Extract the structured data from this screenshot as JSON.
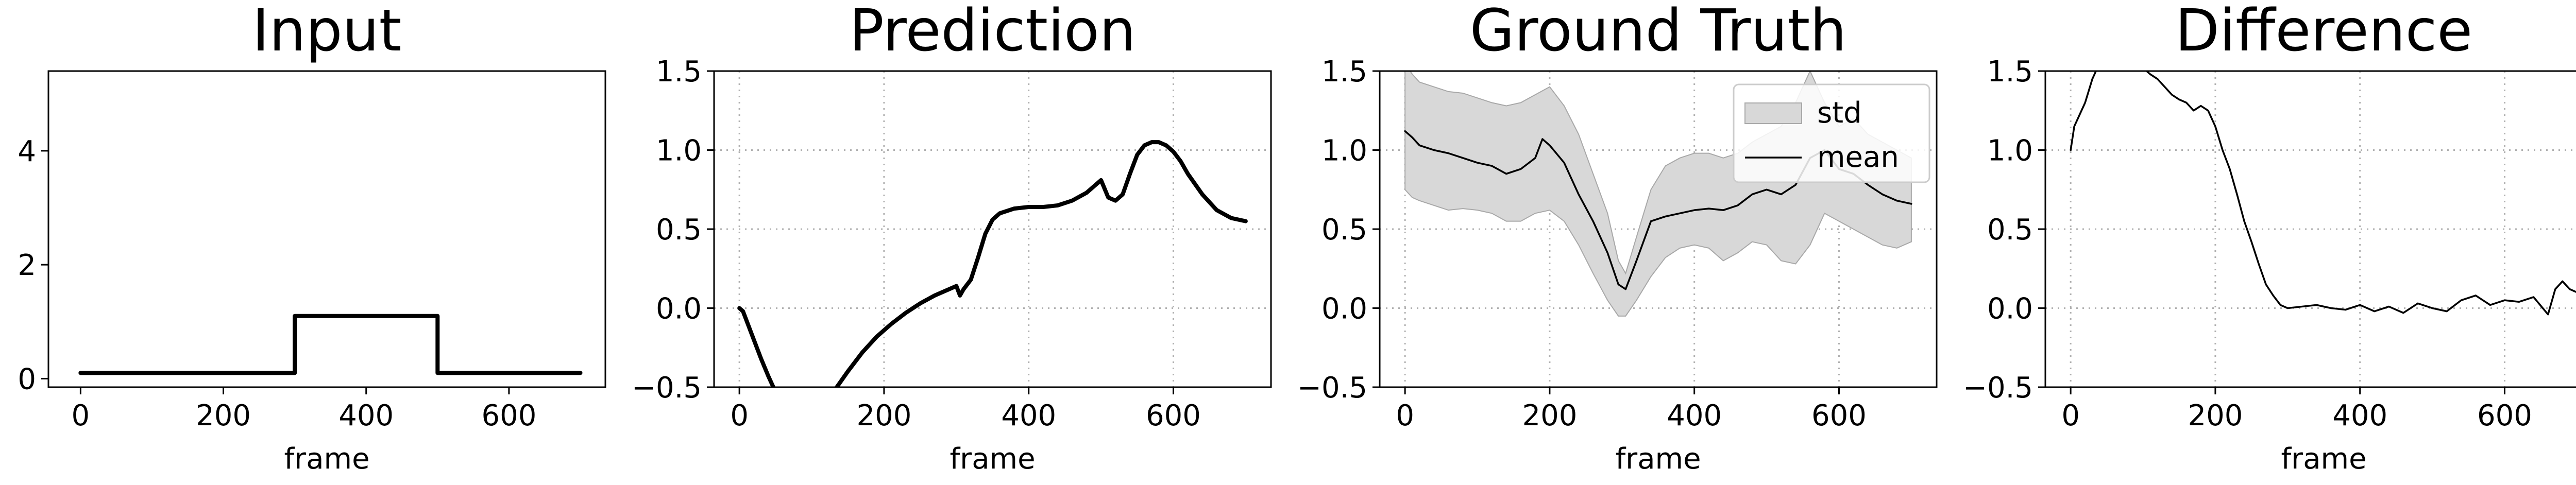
{
  "chart_data": [
    {
      "type": "line",
      "title": "Input",
      "xlabel": "frame",
      "ylabel": "",
      "xlim": [
        -45,
        735
      ],
      "ylim": [
        -0.15,
        5.4
      ],
      "xticks": [
        0,
        200,
        400,
        600
      ],
      "xtick_labels": [
        "0",
        "200",
        "400",
        "600"
      ],
      "yticks": [
        0,
        2,
        4
      ],
      "ytick_labels": [
        "0",
        "2",
        "4"
      ],
      "grid": false,
      "series": [
        {
          "x": [
            0,
            300,
            300,
            500,
            500,
            700
          ],
          "y": [
            0.1,
            0.1,
            1.1,
            1.1,
            0.1,
            0.1
          ]
        }
      ]
    },
    {
      "type": "line",
      "title": "Prediction",
      "xlabel": "frame",
      "ylabel": "",
      "xlim": [
        -35,
        735
      ],
      "ylim": [
        -0.5,
        1.5
      ],
      "xticks": [
        0,
        200,
        400,
        600
      ],
      "xtick_labels": [
        "0",
        "200",
        "400",
        "600"
      ],
      "yticks": [
        -0.5,
        0.0,
        0.5,
        1.0,
        1.5
      ],
      "ytick_labels": [
        "−0.5",
        "0.0",
        "0.5",
        "1.0",
        "1.5"
      ],
      "grid": true,
      "series": [
        {
          "x": [
            0,
            5,
            10,
            20,
            30,
            40,
            45,
            50
          ],
          "y": [
            0.0,
            -0.02,
            -0.08,
            -0.2,
            -0.32,
            -0.43,
            -0.48,
            -0.53
          ]
        },
        {
          "x": [
            130,
            150,
            170,
            190,
            210,
            230,
            250,
            270,
            290,
            300,
            305,
            310,
            320,
            330,
            340,
            350,
            360,
            380,
            400,
            420,
            440,
            460,
            480,
            490,
            500,
            510,
            520,
            530,
            540,
            550,
            560,
            570,
            580,
            590,
            600,
            610,
            620,
            640,
            660,
            680,
            700
          ],
          "y": [
            -0.53,
            -0.4,
            -0.28,
            -0.18,
            -0.1,
            -0.03,
            0.03,
            0.08,
            0.12,
            0.14,
            0.08,
            0.12,
            0.18,
            0.32,
            0.47,
            0.56,
            0.6,
            0.63,
            0.64,
            0.64,
            0.65,
            0.68,
            0.73,
            0.77,
            0.81,
            0.7,
            0.68,
            0.72,
            0.85,
            0.97,
            1.03,
            1.05,
            1.05,
            1.03,
            0.99,
            0.93,
            0.85,
            0.72,
            0.62,
            0.57,
            0.55
          ]
        }
      ]
    },
    {
      "type": "area",
      "title": "Ground Truth",
      "xlabel": "frame",
      "ylabel": "",
      "xlim": [
        -35,
        735
      ],
      "ylim": [
        -0.5,
        1.5
      ],
      "xticks": [
        0,
        200,
        400,
        600
      ],
      "xtick_labels": [
        "0",
        "200",
        "400",
        "600"
      ],
      "yticks": [
        -0.5,
        0.0,
        0.5,
        1.0,
        1.5
      ],
      "ytick_labels": [
        "−0.5",
        "0.0",
        "0.5",
        "1.0",
        "1.5"
      ],
      "grid": true,
      "legend_position": "top-right",
      "series": [
        {
          "name": "std",
          "x": [
            0,
            10,
            20,
            40,
            60,
            80,
            100,
            120,
            140,
            160,
            180,
            200,
            220,
            240,
            260,
            280,
            295,
            305,
            320,
            340,
            360,
            380,
            400,
            420,
            440,
            460,
            480,
            500,
            520,
            540,
            560,
            580,
            600,
            620,
            640,
            660,
            680,
            700
          ],
          "upper": [
            1.55,
            1.48,
            1.43,
            1.4,
            1.37,
            1.36,
            1.33,
            1.3,
            1.28,
            1.3,
            1.35,
            1.4,
            1.28,
            1.1,
            0.85,
            0.6,
            0.3,
            0.22,
            0.45,
            0.75,
            0.9,
            0.95,
            0.98,
            0.98,
            0.95,
            0.98,
            1.05,
            1.1,
            1.15,
            1.3,
            1.5,
            1.3,
            1.15,
            1.2,
            1.1,
            1.05,
            1.0,
            0.95
          ],
          "lower": [
            0.75,
            0.7,
            0.68,
            0.65,
            0.62,
            0.63,
            0.62,
            0.6,
            0.55,
            0.55,
            0.6,
            0.62,
            0.55,
            0.4,
            0.22,
            0.05,
            -0.05,
            -0.05,
            0.05,
            0.2,
            0.32,
            0.38,
            0.4,
            0.38,
            0.3,
            0.35,
            0.42,
            0.4,
            0.3,
            0.28,
            0.4,
            0.6,
            0.55,
            0.5,
            0.45,
            0.4,
            0.38,
            0.42
          ]
        },
        {
          "name": "mean",
          "x": [
            0,
            10,
            20,
            40,
            60,
            80,
            100,
            120,
            140,
            160,
            180,
            190,
            200,
            220,
            240,
            260,
            280,
            295,
            305,
            320,
            340,
            360,
            380,
            400,
            420,
            440,
            460,
            480,
            500,
            520,
            540,
            560,
            580,
            600,
            620,
            640,
            660,
            680,
            700
          ],
          "y": [
            1.12,
            1.08,
            1.03,
            1.0,
            0.98,
            0.95,
            0.92,
            0.9,
            0.85,
            0.88,
            0.95,
            1.07,
            1.03,
            0.92,
            0.72,
            0.55,
            0.35,
            0.15,
            0.12,
            0.3,
            0.55,
            0.58,
            0.6,
            0.62,
            0.63,
            0.62,
            0.65,
            0.72,
            0.75,
            0.72,
            0.78,
            0.95,
            1.0,
            0.88,
            0.85,
            0.78,
            0.72,
            0.68,
            0.66
          ]
        }
      ]
    },
    {
      "type": "line",
      "title": "Difference",
      "xlabel": "frame",
      "ylabel": "",
      "xlim": [
        -35,
        735
      ],
      "ylim": [
        -0.5,
        1.5
      ],
      "xticks": [
        0,
        200,
        400,
        600
      ],
      "xtick_labels": [
        "0",
        "200",
        "400",
        "600"
      ],
      "yticks": [
        -0.5,
        0.0,
        0.5,
        1.0,
        1.5
      ],
      "ytick_labels": [
        "−0.5",
        "0.0",
        "0.5",
        "1.0",
        "1.5"
      ],
      "grid": true,
      "series": [
        {
          "x": [
            0,
            5,
            10,
            20,
            30,
            40,
            50,
            60,
            70,
            80,
            90,
            100,
            110,
            120,
            130,
            140,
            150,
            160,
            170,
            180,
            190,
            200,
            210,
            220,
            230,
            240,
            250,
            260,
            270,
            280,
            290,
            300,
            320,
            340,
            360,
            380,
            400,
            420,
            440,
            460,
            480,
            500,
            520,
            540,
            560,
            580,
            600,
            620,
            640,
            660,
            670,
            680,
            690,
            700
          ],
          "y": [
            1.0,
            1.15,
            1.2,
            1.3,
            1.45,
            1.55,
            1.6,
            1.6,
            1.62,
            1.58,
            1.55,
            1.52,
            1.48,
            1.45,
            1.4,
            1.35,
            1.32,
            1.3,
            1.25,
            1.28,
            1.25,
            1.15,
            1.0,
            0.88,
            0.72,
            0.55,
            0.42,
            0.28,
            0.15,
            0.08,
            0.02,
            0.0,
            0.01,
            0.02,
            0.0,
            -0.01,
            0.02,
            -0.02,
            0.01,
            -0.03,
            0.03,
            0.0,
            -0.02,
            0.05,
            0.08,
            0.02,
            0.05,
            0.04,
            0.07,
            -0.04,
            0.12,
            0.17,
            0.12,
            0.1
          ]
        }
      ]
    }
  ]
}
